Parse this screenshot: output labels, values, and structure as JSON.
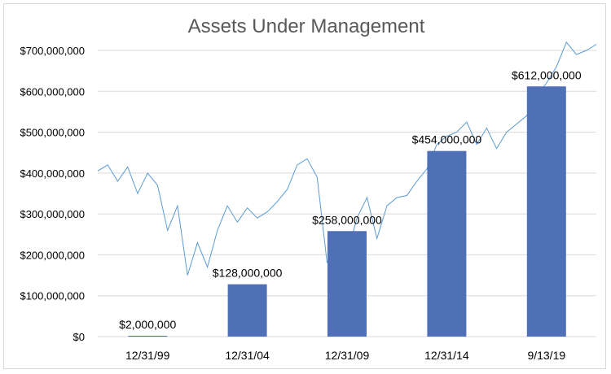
{
  "chart_data": {
    "type": "bar",
    "title": "Assets Under Management",
    "xlabel": "",
    "ylabel": "",
    "categories": [
      "12/31/99",
      "12/31/04",
      "12/31/09",
      "12/31/14",
      "9/13/19"
    ],
    "values": [
      2000000,
      128000000,
      258000000,
      454000000,
      612000000
    ],
    "data_labels": [
      "$2,000,000",
      "$128,000,000",
      "$258,000,000",
      "$454,000,000",
      "$612,000,000"
    ],
    "yticks": [
      "$0",
      "$100,000,000",
      "$200,000,000",
      "$300,000,000",
      "$400,000,000",
      "$500,000,000",
      "$600,000,000",
      "$700,000,000"
    ],
    "ylim": [
      0,
      700000000
    ],
    "grid": true,
    "legend": "none",
    "bar_color": "#4F6FB7",
    "grid_color": "#d9d9d9",
    "background_line": {
      "type": "line",
      "color": "#5B9BD5",
      "x": [
        0.0,
        0.1,
        0.2,
        0.3,
        0.4,
        0.5,
        0.6,
        0.7,
        0.8,
        0.9,
        1.0,
        1.1,
        1.2,
        1.3,
        1.4,
        1.5,
        1.6,
        1.7,
        1.8,
        1.9,
        2.0,
        2.1,
        2.2,
        2.3,
        2.4,
        2.5,
        2.6,
        2.7,
        2.8,
        2.9,
        3.0,
        3.1,
        3.2,
        3.3,
        3.4,
        3.5,
        3.6,
        3.7,
        3.8,
        3.9,
        4.0,
        4.1,
        4.2,
        4.3,
        4.4,
        4.5,
        4.6,
        4.7,
        4.8,
        4.9,
        5.0
      ],
      "y": [
        405000000,
        420000000,
        380000000,
        415000000,
        350000000,
        400000000,
        370000000,
        260000000,
        320000000,
        150000000,
        230000000,
        170000000,
        260000000,
        320000000,
        280000000,
        315000000,
        290000000,
        305000000,
        330000000,
        360000000,
        420000000,
        435000000,
        390000000,
        180000000,
        250000000,
        200000000,
        290000000,
        340000000,
        240000000,
        320000000,
        340000000,
        345000000,
        380000000,
        410000000,
        470000000,
        490000000,
        500000000,
        525000000,
        470000000,
        510000000,
        460000000,
        500000000,
        520000000,
        540000000,
        590000000,
        620000000,
        660000000,
        720000000,
        690000000,
        700000000,
        715000000
      ]
    }
  }
}
